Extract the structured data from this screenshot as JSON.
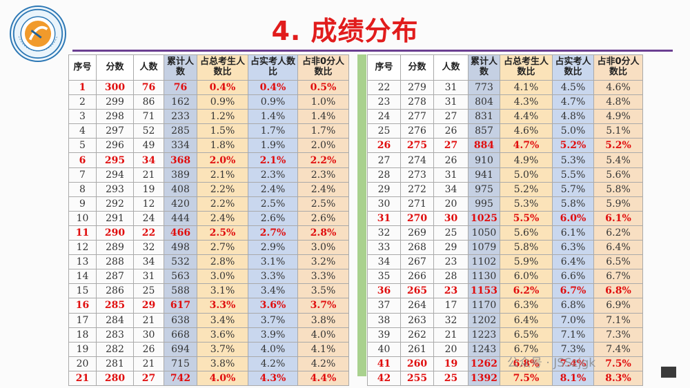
{
  "title": "4. 成绩分布",
  "logo": {
    "text": "School of Computer Engineering"
  },
  "headers": [
    "序号",
    "分数",
    "人数",
    "累计人数",
    "占总考生人数比",
    "占实考人数比",
    "占非0分人数比"
  ],
  "left_rows": [
    {
      "no": "1",
      "score": "300",
      "count": "76",
      "cum": "76",
      "p_total": "0.4%",
      "p_actual": "0.4%",
      "p_nonzero": "0.5%",
      "highlight": true
    },
    {
      "no": "2",
      "score": "299",
      "count": "86",
      "cum": "162",
      "p_total": "0.9%",
      "p_actual": "0.9%",
      "p_nonzero": "1.0%",
      "highlight": false
    },
    {
      "no": "3",
      "score": "298",
      "count": "71",
      "cum": "233",
      "p_total": "1.2%",
      "p_actual": "1.4%",
      "p_nonzero": "1.4%",
      "highlight": false
    },
    {
      "no": "4",
      "score": "297",
      "count": "52",
      "cum": "285",
      "p_total": "1.5%",
      "p_actual": "1.7%",
      "p_nonzero": "1.7%",
      "highlight": false
    },
    {
      "no": "5",
      "score": "296",
      "count": "49",
      "cum": "334",
      "p_total": "1.8%",
      "p_actual": "1.9%",
      "p_nonzero": "2.0%",
      "highlight": false
    },
    {
      "no": "6",
      "score": "295",
      "count": "34",
      "cum": "368",
      "p_total": "2.0%",
      "p_actual": "2.1%",
      "p_nonzero": "2.2%",
      "highlight": true
    },
    {
      "no": "7",
      "score": "294",
      "count": "21",
      "cum": "389",
      "p_total": "2.1%",
      "p_actual": "2.3%",
      "p_nonzero": "2.3%",
      "highlight": false
    },
    {
      "no": "8",
      "score": "293",
      "count": "19",
      "cum": "408",
      "p_total": "2.2%",
      "p_actual": "2.4%",
      "p_nonzero": "2.4%",
      "highlight": false
    },
    {
      "no": "9",
      "score": "292",
      "count": "12",
      "cum": "420",
      "p_total": "2.2%",
      "p_actual": "2.5%",
      "p_nonzero": "2.5%",
      "highlight": false
    },
    {
      "no": "10",
      "score": "291",
      "count": "24",
      "cum": "444",
      "p_total": "2.4%",
      "p_actual": "2.6%",
      "p_nonzero": "2.6%",
      "highlight": false
    },
    {
      "no": "11",
      "score": "290",
      "count": "22",
      "cum": "466",
      "p_total": "2.5%",
      "p_actual": "2.7%",
      "p_nonzero": "2.8%",
      "highlight": true
    },
    {
      "no": "12",
      "score": "289",
      "count": "32",
      "cum": "498",
      "p_total": "2.7%",
      "p_actual": "2.9%",
      "p_nonzero": "3.0%",
      "highlight": false
    },
    {
      "no": "13",
      "score": "288",
      "count": "34",
      "cum": "532",
      "p_total": "2.8%",
      "p_actual": "3.1%",
      "p_nonzero": "3.2%",
      "highlight": false
    },
    {
      "no": "14",
      "score": "287",
      "count": "31",
      "cum": "563",
      "p_total": "3.0%",
      "p_actual": "3.3%",
      "p_nonzero": "3.3%",
      "highlight": false
    },
    {
      "no": "15",
      "score": "286",
      "count": "25",
      "cum": "588",
      "p_total": "3.1%",
      "p_actual": "3.4%",
      "p_nonzero": "3.5%",
      "highlight": false
    },
    {
      "no": "16",
      "score": "285",
      "count": "29",
      "cum": "617",
      "p_total": "3.3%",
      "p_actual": "3.6%",
      "p_nonzero": "3.7%",
      "highlight": true
    },
    {
      "no": "17",
      "score": "284",
      "count": "21",
      "cum": "638",
      "p_total": "3.4%",
      "p_actual": "3.7%",
      "p_nonzero": "3.8%",
      "highlight": false
    },
    {
      "no": "18",
      "score": "283",
      "count": "30",
      "cum": "668",
      "p_total": "3.6%",
      "p_actual": "3.9%",
      "p_nonzero": "4.0%",
      "highlight": false
    },
    {
      "no": "19",
      "score": "282",
      "count": "26",
      "cum": "694",
      "p_total": "3.7%",
      "p_actual": "4.0%",
      "p_nonzero": "4.1%",
      "highlight": false
    },
    {
      "no": "20",
      "score": "281",
      "count": "21",
      "cum": "715",
      "p_total": "3.8%",
      "p_actual": "4.2%",
      "p_nonzero": "4.2%",
      "highlight": false
    },
    {
      "no": "21",
      "score": "280",
      "count": "27",
      "cum": "742",
      "p_total": "4.0%",
      "p_actual": "4.3%",
      "p_nonzero": "4.4%",
      "highlight": true
    }
  ],
  "right_rows": [
    {
      "no": "22",
      "score": "279",
      "count": "31",
      "cum": "773",
      "p_total": "4.1%",
      "p_actual": "4.5%",
      "p_nonzero": "4.6%",
      "highlight": false
    },
    {
      "no": "23",
      "score": "278",
      "count": "31",
      "cum": "804",
      "p_total": "4.3%",
      "p_actual": "4.7%",
      "p_nonzero": "4.8%",
      "highlight": false
    },
    {
      "no": "24",
      "score": "277",
      "count": "27",
      "cum": "831",
      "p_total": "4.4%",
      "p_actual": "4.8%",
      "p_nonzero": "4.9%",
      "highlight": false
    },
    {
      "no": "25",
      "score": "276",
      "count": "26",
      "cum": "857",
      "p_total": "4.6%",
      "p_actual": "5.0%",
      "p_nonzero": "5.1%",
      "highlight": false
    },
    {
      "no": "26",
      "score": "275",
      "count": "27",
      "cum": "884",
      "p_total": "4.7%",
      "p_actual": "5.2%",
      "p_nonzero": "5.2%",
      "highlight": true
    },
    {
      "no": "27",
      "score": "274",
      "count": "26",
      "cum": "910",
      "p_total": "4.9%",
      "p_actual": "5.3%",
      "p_nonzero": "5.4%",
      "highlight": false
    },
    {
      "no": "28",
      "score": "273",
      "count": "31",
      "cum": "941",
      "p_total": "5.0%",
      "p_actual": "5.5%",
      "p_nonzero": "5.6%",
      "highlight": false
    },
    {
      "no": "29",
      "score": "272",
      "count": "34",
      "cum": "975",
      "p_total": "5.2%",
      "p_actual": "5.7%",
      "p_nonzero": "5.8%",
      "highlight": false
    },
    {
      "no": "30",
      "score": "271",
      "count": "20",
      "cum": "995",
      "p_total": "5.3%",
      "p_actual": "5.8%",
      "p_nonzero": "5.9%",
      "highlight": false
    },
    {
      "no": "31",
      "score": "270",
      "count": "30",
      "cum": "1025",
      "p_total": "5.5%",
      "p_actual": "6.0%",
      "p_nonzero": "6.1%",
      "highlight": true
    },
    {
      "no": "32",
      "score": "269",
      "count": "25",
      "cum": "1050",
      "p_total": "5.6%",
      "p_actual": "6.1%",
      "p_nonzero": "6.2%",
      "highlight": false
    },
    {
      "no": "33",
      "score": "268",
      "count": "29",
      "cum": "1079",
      "p_total": "5.8%",
      "p_actual": "6.3%",
      "p_nonzero": "6.4%",
      "highlight": false
    },
    {
      "no": "34",
      "score": "267",
      "count": "23",
      "cum": "1102",
      "p_total": "5.9%",
      "p_actual": "6.4%",
      "p_nonzero": "6.5%",
      "highlight": false
    },
    {
      "no": "35",
      "score": "266",
      "count": "28",
      "cum": "1130",
      "p_total": "6.0%",
      "p_actual": "6.6%",
      "p_nonzero": "6.7%",
      "highlight": false
    },
    {
      "no": "36",
      "score": "265",
      "count": "23",
      "cum": "1153",
      "p_total": "6.2%",
      "p_actual": "6.7%",
      "p_nonzero": "6.8%",
      "highlight": true
    },
    {
      "no": "37",
      "score": "264",
      "count": "17",
      "cum": "1170",
      "p_total": "6.3%",
      "p_actual": "6.8%",
      "p_nonzero": "6.9%",
      "highlight": false
    },
    {
      "no": "38",
      "score": "263",
      "count": "32",
      "cum": "1202",
      "p_total": "6.4%",
      "p_actual": "7.0%",
      "p_nonzero": "7.1%",
      "highlight": false
    },
    {
      "no": "39",
      "score": "262",
      "count": "21",
      "cum": "1223",
      "p_total": "6.5%",
      "p_actual": "7.1%",
      "p_nonzero": "7.3%",
      "highlight": false
    },
    {
      "no": "40",
      "score": "261",
      "count": "20",
      "cum": "1243",
      "p_total": "6.7%",
      "p_actual": "7.3%",
      "p_nonzero": "7.4%",
      "highlight": false
    },
    {
      "no": "41",
      "score": "260",
      "count": "19",
      "cum": "1262",
      "p_total": "6.8%",
      "p_actual": "7.4%",
      "p_nonzero": "7.5%",
      "highlight": true
    },
    {
      "no": "42",
      "score": "255",
      "count": "25",
      "cum": "1392",
      "p_total": "7.5%",
      "p_actual": "8.1%",
      "p_nonzero": "8.3%",
      "highlight": true
    }
  ],
  "watermark": "公众号 · JSSzjgk"
}
